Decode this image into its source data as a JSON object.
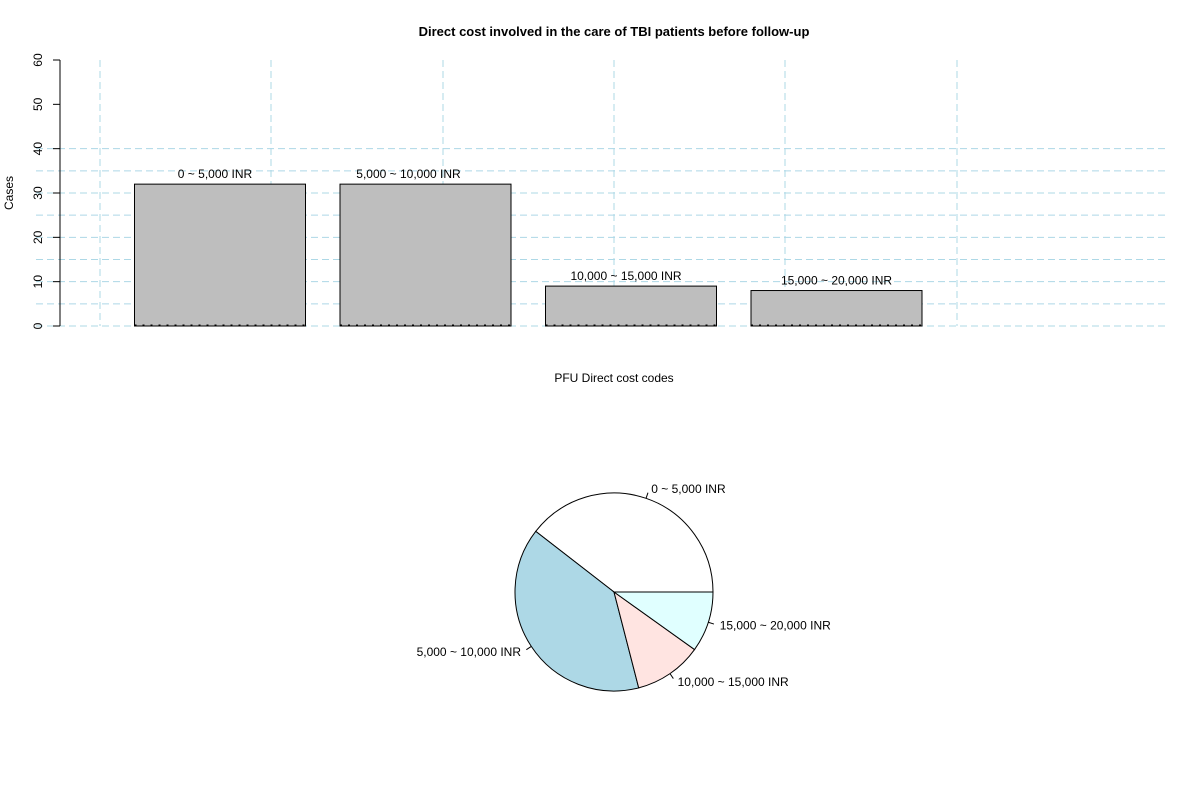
{
  "chart_data": [
    {
      "type": "bar",
      "title": "Direct cost involved in the care of TBI patients before follow-up",
      "xlabel": "PFU Direct cost codes",
      "ylabel": "Cases",
      "categories": [
        "0 ~ 5,000 INR",
        "5,000 ~ 10,000 INR",
        "10,000 ~ 15,000 INR",
        "15,000 ~ 20,000 INR"
      ],
      "values": [
        32,
        32,
        9,
        8
      ],
      "ylim": [
        0,
        60
      ],
      "yticks": [
        "0",
        "10",
        "20",
        "30",
        "40",
        "50",
        "60"
      ],
      "grid": true,
      "bar_color": "#bebebe",
      "grid_color": "#add8e6"
    },
    {
      "type": "pie",
      "labels": [
        "0 ~ 5,000 INR",
        "5,000 ~ 10,000 INR",
        "10,000 ~ 15,000 INR",
        "15,000 ~ 20,000 INR"
      ],
      "values": [
        32,
        32,
        9,
        8
      ],
      "colors": [
        "#ffffff",
        "#add8e6",
        "#ffe4e1",
        "#e0ffff"
      ]
    }
  ]
}
